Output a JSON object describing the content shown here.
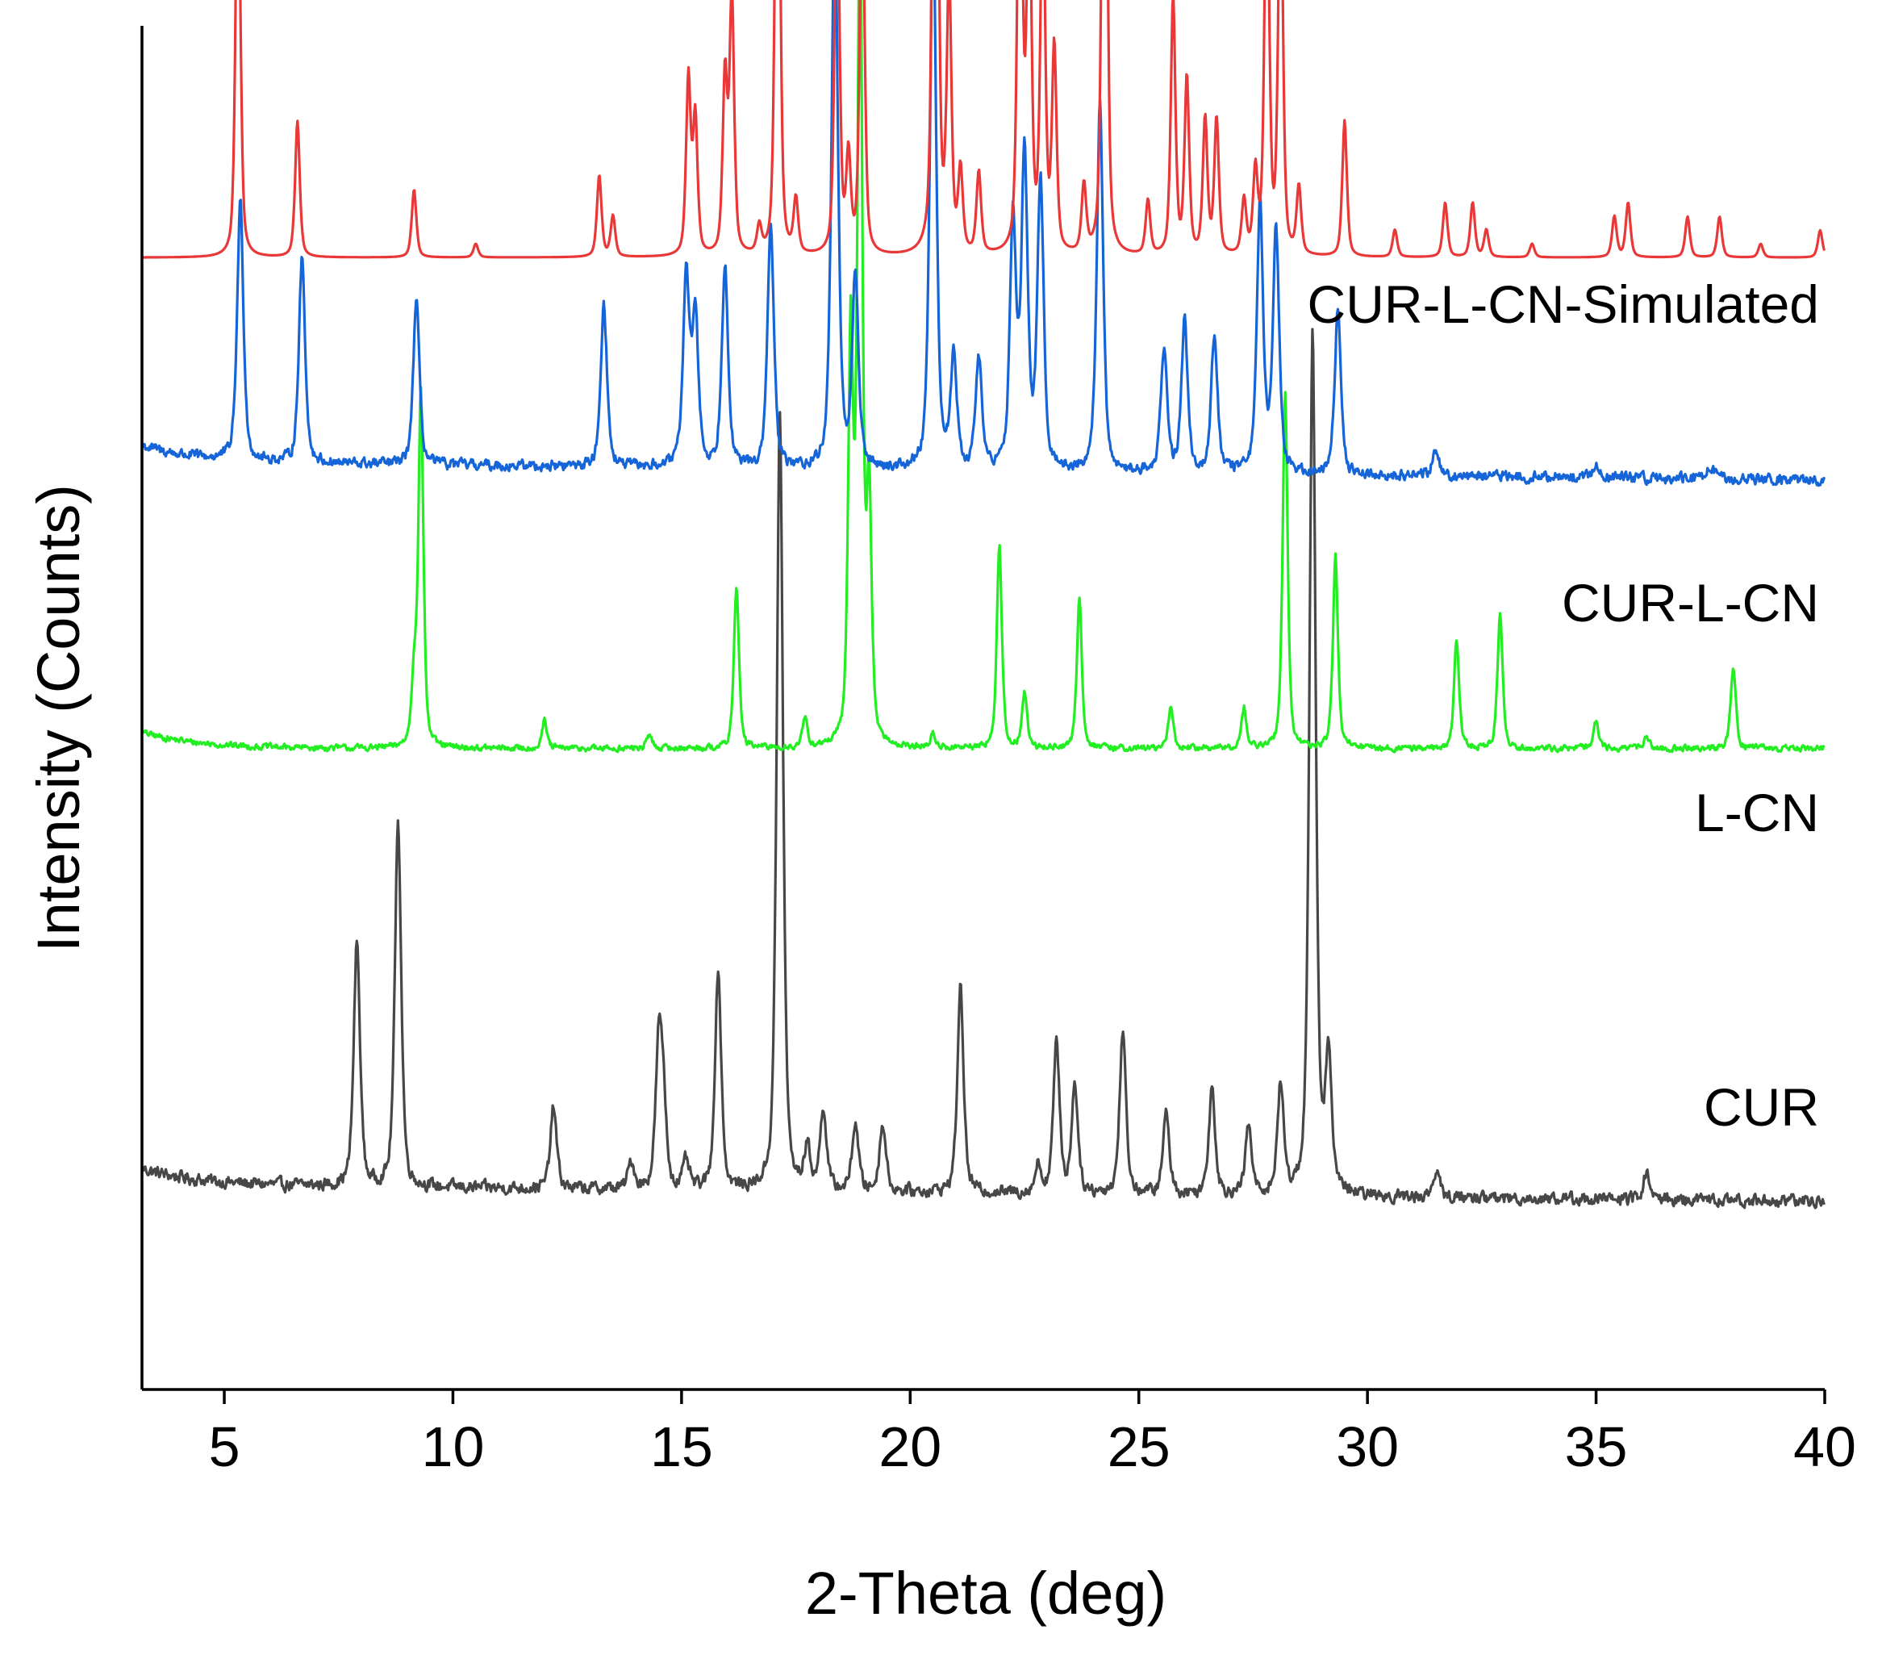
{
  "chart_data": {
    "type": "line",
    "title": "",
    "xlabel": "2-Theta (deg)",
    "ylabel": "Intensity (Counts)",
    "xlim": [
      3.2,
      40
    ],
    "xticks": [
      "5",
      "10",
      "15",
      "20",
      "25",
      "30",
      "35",
      "40"
    ],
    "yticks": [],
    "grid": false,
    "legend": "none (labels placed at right of each trace)",
    "series": [
      {
        "name": "CUR",
        "label": "CUR",
        "color": "#474747",
        "baseline": 0.15,
        "slope": -0.012,
        "noise": 0.007,
        "width": 0.075,
        "peaks": [
          [
            7.9,
            0.18
          ],
          [
            8.8,
            0.27
          ],
          [
            12.2,
            0.06
          ],
          [
            13.9,
            0.02
          ],
          [
            14.5,
            0.1
          ],
          [
            14.6,
            0.06
          ],
          [
            15.1,
            0.02
          ],
          [
            15.8,
            0.16
          ],
          [
            17.15,
            0.57
          ],
          [
            17.75,
            0.03
          ],
          [
            18.1,
            0.06
          ],
          [
            18.8,
            0.05
          ],
          [
            19.4,
            0.05
          ],
          [
            21.1,
            0.15
          ],
          [
            22.8,
            0.02
          ],
          [
            23.2,
            0.11
          ],
          [
            23.6,
            0.08
          ],
          [
            24.65,
            0.12
          ],
          [
            25.6,
            0.06
          ],
          [
            26.6,
            0.08
          ],
          [
            27.4,
            0.05
          ],
          [
            28.1,
            0.08
          ],
          [
            28.8,
            0.63
          ],
          [
            29.15,
            0.1
          ],
          [
            31.5,
            0.02
          ],
          [
            36.1,
            0.02
          ]
        ]
      },
      {
        "name": "L-CN",
        "label": "L-CN",
        "color": "#22ee22",
        "baseline": 0.47,
        "slope": 0.0,
        "noise": 0.0035,
        "width": 0.06,
        "peaks": [
          [
            9.3,
            0.26
          ],
          [
            9.15,
            0.05
          ],
          [
            12.0,
            0.02
          ],
          [
            14.3,
            0.01
          ],
          [
            16.2,
            0.12
          ],
          [
            17.7,
            0.02
          ],
          [
            18.7,
            0.3
          ],
          [
            18.9,
            0.61
          ],
          [
            19.1,
            0.18
          ],
          [
            20.5,
            0.01
          ],
          [
            21.95,
            0.15
          ],
          [
            22.5,
            0.04
          ],
          [
            23.7,
            0.11
          ],
          [
            25.7,
            0.03
          ],
          [
            27.3,
            0.03
          ],
          [
            28.2,
            0.26
          ],
          [
            29.3,
            0.14
          ],
          [
            31.95,
            0.08
          ],
          [
            32.9,
            0.1
          ],
          [
            35.0,
            0.02
          ],
          [
            36.1,
            0.01
          ],
          [
            38.0,
            0.06
          ]
        ]
      },
      {
        "name": "CUR-L-CN",
        "label": "CUR-L-CN",
        "color": "#1565d8",
        "baseline": 0.68,
        "slope": -0.013,
        "noise": 0.006,
        "width": 0.075,
        "peaks": [
          [
            5.35,
            0.19
          ],
          [
            6.7,
            0.15
          ],
          [
            9.2,
            0.12
          ],
          [
            13.3,
            0.12
          ],
          [
            15.1,
            0.14
          ],
          [
            15.3,
            0.11
          ],
          [
            15.95,
            0.15
          ],
          [
            16.95,
            0.18
          ],
          [
            18.35,
            0.42
          ],
          [
            18.8,
            0.14
          ],
          [
            20.5,
            0.41
          ],
          [
            20.95,
            0.08
          ],
          [
            21.5,
            0.08
          ],
          [
            22.25,
            0.18
          ],
          [
            22.5,
            0.23
          ],
          [
            22.85,
            0.21
          ],
          [
            24.15,
            0.27
          ],
          [
            25.55,
            0.09
          ],
          [
            26.0,
            0.11
          ],
          [
            26.65,
            0.1
          ],
          [
            27.65,
            0.2
          ],
          [
            28.0,
            0.18
          ],
          [
            29.35,
            0.12
          ],
          [
            31.5,
            0.02
          ],
          [
            35.0,
            0.01
          ],
          [
            37.5,
            0.01
          ]
        ]
      },
      {
        "name": "CUR-L-CN-Simulated",
        "label": "CUR-L-CN-Simulated",
        "color": "#e83838",
        "baseline": 0.83,
        "slope": 0.0,
        "noise": 0.0,
        "width": 0.055,
        "peaks": [
          [
            5.3,
            0.33
          ],
          [
            6.6,
            0.1
          ],
          [
            9.15,
            0.05
          ],
          [
            10.5,
            0.01
          ],
          [
            13.2,
            0.06
          ],
          [
            13.5,
            0.03
          ],
          [
            15.15,
            0.13
          ],
          [
            15.3,
            0.1
          ],
          [
            15.95,
            0.13
          ],
          [
            16.1,
            0.19
          ],
          [
            16.7,
            0.02
          ],
          [
            17.1,
            0.45
          ],
          [
            17.5,
            0.04
          ],
          [
            18.4,
            0.31
          ],
          [
            18.65,
            0.07
          ],
          [
            18.95,
            0.3
          ],
          [
            20.55,
            0.69
          ],
          [
            20.85,
            0.2
          ],
          [
            21.1,
            0.06
          ],
          [
            21.5,
            0.06
          ],
          [
            22.4,
            0.38
          ],
          [
            22.6,
            0.28
          ],
          [
            22.9,
            0.28
          ],
          [
            23.15,
            0.15
          ],
          [
            23.8,
            0.05
          ],
          [
            24.25,
            0.56
          ],
          [
            25.2,
            0.04
          ],
          [
            25.75,
            0.19
          ],
          [
            26.05,
            0.13
          ],
          [
            26.45,
            0.1
          ],
          [
            26.7,
            0.1
          ],
          [
            27.3,
            0.04
          ],
          [
            27.55,
            0.06
          ],
          [
            27.8,
            0.31
          ],
          [
            28.1,
            0.3
          ],
          [
            28.5,
            0.05
          ],
          [
            29.5,
            0.1
          ],
          [
            30.6,
            0.02
          ],
          [
            31.7,
            0.04
          ],
          [
            32.3,
            0.04
          ],
          [
            32.6,
            0.02
          ],
          [
            33.6,
            0.01
          ],
          [
            35.4,
            0.03
          ],
          [
            35.7,
            0.04
          ],
          [
            37.0,
            0.03
          ],
          [
            37.7,
            0.03
          ],
          [
            38.6,
            0.01
          ],
          [
            39.9,
            0.02
          ]
        ]
      }
    ]
  }
}
